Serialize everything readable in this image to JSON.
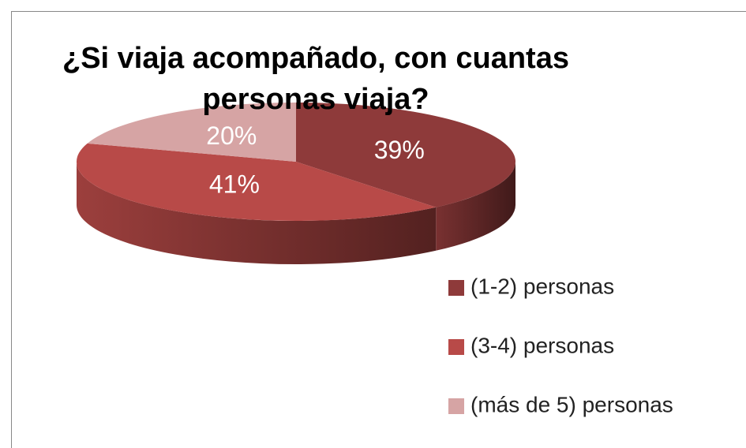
{
  "chart_data": {
    "type": "pie3d",
    "title": "¿Si viaja acompañado, con cuantas personas viaja?",
    "categories": [
      "(1-2) personas",
      "(3-4) personas",
      "(más de 5) personas"
    ],
    "values": [
      39,
      41,
      20
    ],
    "value_labels": [
      "39%",
      "41%",
      "20%"
    ],
    "colors": [
      "#8e3a3a",
      "#b84a48",
      "#d6a4a4"
    ],
    "legend": "right"
  }
}
